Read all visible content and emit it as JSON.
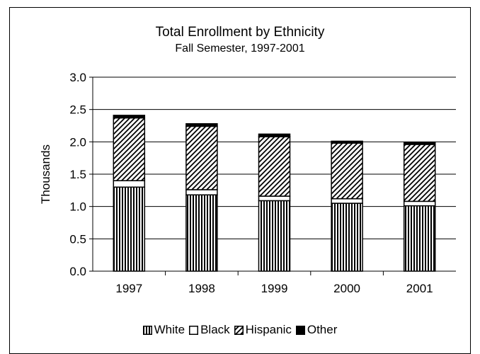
{
  "chart_data": {
    "type": "bar",
    "stacked": true,
    "title": "Total Enrollment by Ethnicity",
    "subtitle": "Fall Semester, 1997-2001",
    "xlabel": "",
    "ylabel": "Thousands",
    "ylim": [
      0,
      3.0
    ],
    "yticks": [
      "0.0",
      "0.5",
      "1.0",
      "1.5",
      "2.0",
      "2.5",
      "3.0"
    ],
    "grid": true,
    "legend_position": "bottom",
    "categories": [
      "1997",
      "1998",
      "1999",
      "2000",
      "2001"
    ],
    "series": [
      {
        "name": "White",
        "pattern": "vertical-stripes",
        "values": [
          1.3,
          1.18,
          1.09,
          1.05,
          1.01
        ]
      },
      {
        "name": "Black",
        "pattern": "solid-white",
        "values": [
          0.1,
          0.08,
          0.07,
          0.07,
          0.07
        ]
      },
      {
        "name": "Hispanic",
        "pattern": "diagonal-hatch",
        "values": [
          0.97,
          0.98,
          0.92,
          0.86,
          0.88
        ]
      },
      {
        "name": "Other",
        "pattern": "solid-black",
        "values": [
          0.04,
          0.04,
          0.04,
          0.03,
          0.03
        ]
      }
    ],
    "colors": {
      "ink": "#000000",
      "background": "#ffffff",
      "grid": "#000000"
    }
  }
}
